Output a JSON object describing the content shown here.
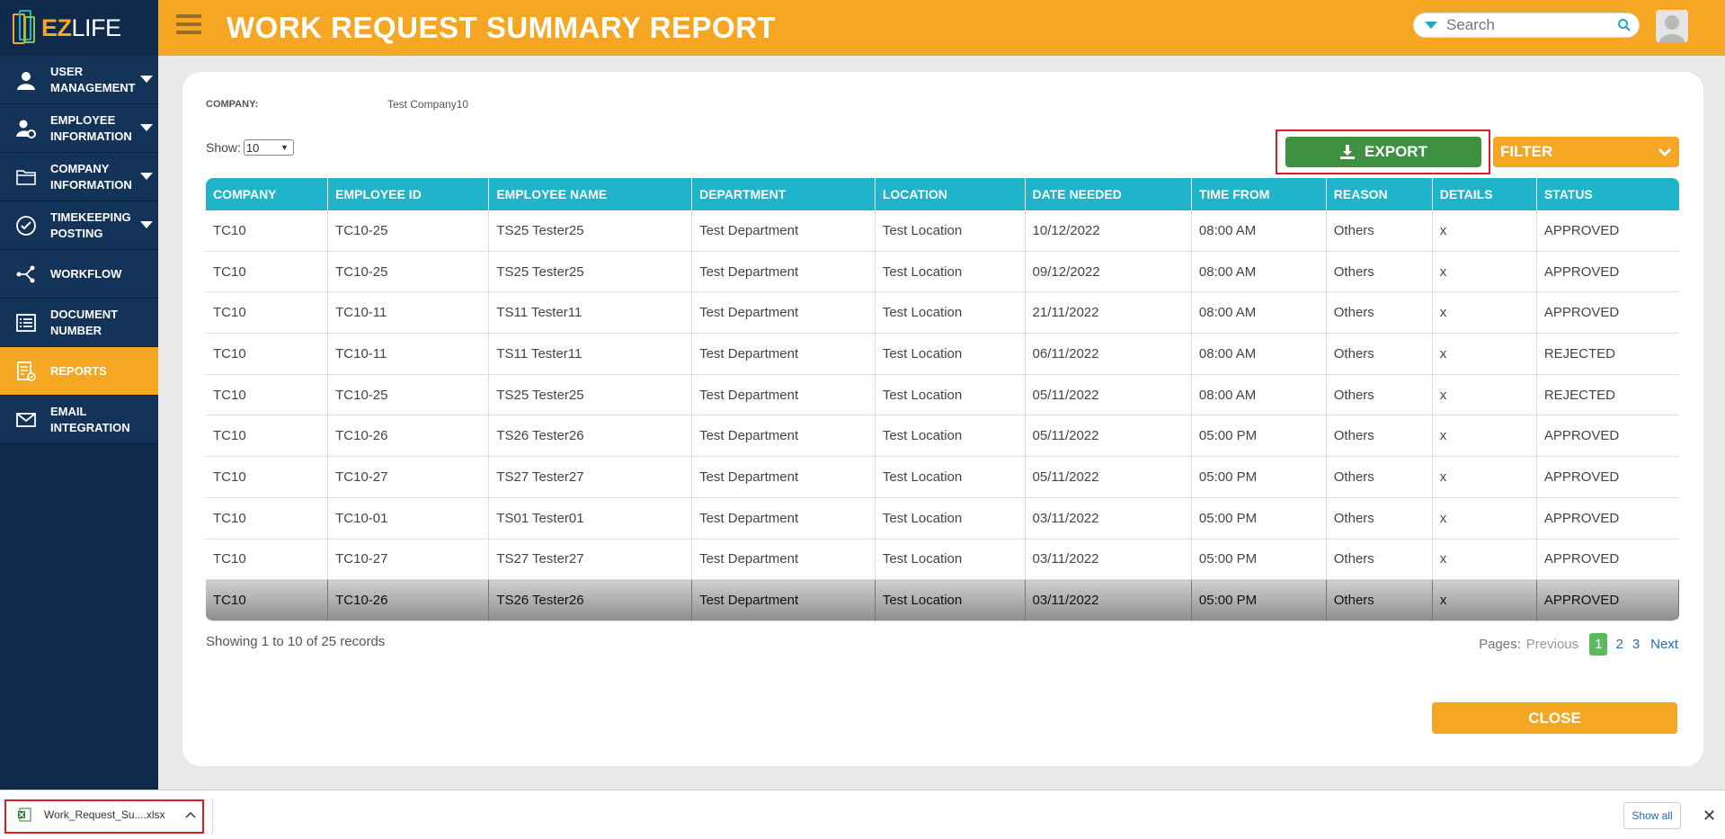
{
  "app": {
    "logo_ez": "EZ",
    "logo_life": "LIFE"
  },
  "sidebar": {
    "items": [
      {
        "label": "USER MANAGEMENT",
        "icon": "user-icon",
        "has_caret": true,
        "active": false
      },
      {
        "label": "EMPLOYEE INFORMATION",
        "icon": "user-gear-icon",
        "has_caret": true,
        "active": false
      },
      {
        "label": "COMPANY INFORMATION",
        "icon": "folder-icon",
        "has_caret": true,
        "active": false
      },
      {
        "label": "TIMEKEEPING POSTING",
        "icon": "check-circle-icon",
        "has_caret": true,
        "active": false
      },
      {
        "label": "WORKFLOW",
        "icon": "workflow-icon",
        "has_caret": false,
        "active": false
      },
      {
        "label": "DOCUMENT NUMBER",
        "icon": "list-icon",
        "has_caret": false,
        "active": false
      },
      {
        "label": "REPORTS",
        "icon": "report-icon",
        "has_caret": false,
        "active": true
      },
      {
        "label": "EMAIL INTEGRATION",
        "icon": "envelope-icon",
        "has_caret": false,
        "active": false
      }
    ]
  },
  "header": {
    "title": "WORK REQUEST SUMMARY REPORT",
    "search_placeholder": "Search"
  },
  "report": {
    "company_label": "COMPANY:",
    "company_value": "Test Company10",
    "show_label": "Show:",
    "show_value": "10",
    "export_label": "EXPORT",
    "filter_label": "FILTER",
    "columns": [
      "COMPANY",
      "EMPLOYEE ID",
      "EMPLOYEE NAME",
      "DEPARTMENT",
      "LOCATION",
      "DATE NEEDED",
      "TIME FROM",
      "REASON",
      "DETAILS",
      "STATUS"
    ],
    "rows": [
      [
        "TC10",
        "TC10-25",
        "TS25 Tester25",
        "Test Department",
        "Test Location",
        "10/12/2022",
        "08:00 AM",
        "Others",
        "x",
        "APPROVED"
      ],
      [
        "TC10",
        "TC10-25",
        "TS25 Tester25",
        "Test Department",
        "Test Location",
        "09/12/2022",
        "08:00 AM",
        "Others",
        "x",
        "APPROVED"
      ],
      [
        "TC10",
        "TC10-11",
        "TS11 Tester11",
        "Test Department",
        "Test Location",
        "21/11/2022",
        "08:00 AM",
        "Others",
        "x",
        "APPROVED"
      ],
      [
        "TC10",
        "TC10-11",
        "TS11 Tester11",
        "Test Department",
        "Test Location",
        "06/11/2022",
        "08:00 AM",
        "Others",
        "x",
        "REJECTED"
      ],
      [
        "TC10",
        "TC10-25",
        "TS25 Tester25",
        "Test Department",
        "Test Location",
        "05/11/2022",
        "08:00 AM",
        "Others",
        "x",
        "REJECTED"
      ],
      [
        "TC10",
        "TC10-26",
        "TS26 Tester26",
        "Test Department",
        "Test Location",
        "05/11/2022",
        "05:00 PM",
        "Others",
        "x",
        "APPROVED"
      ],
      [
        "TC10",
        "TC10-27",
        "TS27 Tester27",
        "Test Department",
        "Test Location",
        "05/11/2022",
        "05:00 PM",
        "Others",
        "x",
        "APPROVED"
      ],
      [
        "TC10",
        "TC10-01",
        "TS01 Tester01",
        "Test Department",
        "Test Location",
        "03/11/2022",
        "05:00 PM",
        "Others",
        "x",
        "APPROVED"
      ],
      [
        "TC10",
        "TC10-27",
        "TS27 Tester27",
        "Test Department",
        "Test Location",
        "03/11/2022",
        "05:00 PM",
        "Others",
        "x",
        "APPROVED"
      ],
      [
        "TC10",
        "TC10-26",
        "TS26 Tester26",
        "Test Department",
        "Test Location",
        "03/11/2022",
        "05:00 PM",
        "Others",
        "x",
        "APPROVED"
      ]
    ],
    "highlighted_row": 9,
    "records_text": "Showing 1 to 10 of 25 records",
    "pager": {
      "label": "Pages:",
      "previous": "Previous",
      "pages": [
        "1",
        "2",
        "3"
      ],
      "current": "1",
      "next": "Next"
    },
    "close_label": "CLOSE"
  },
  "download_bar": {
    "file_name": "Work_Request_Su....xlsx",
    "show_all": "Show all",
    "close": "✕"
  },
  "colors": {
    "accent": "#f5a623",
    "sidebar": "#0f2a4a",
    "table_header": "#1fb4c9",
    "export": "#3f9142"
  }
}
